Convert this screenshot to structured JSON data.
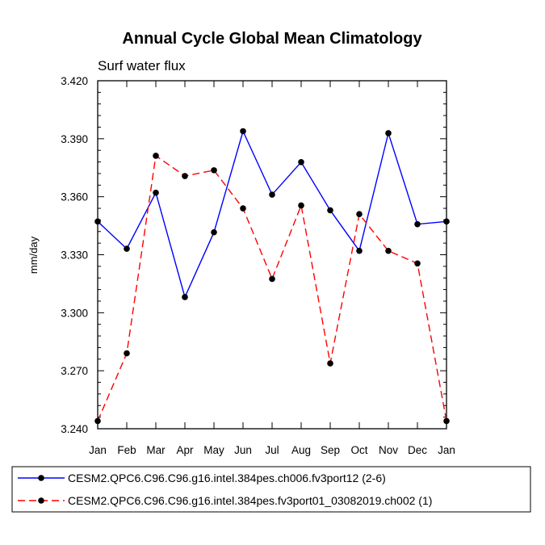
{
  "chart_data": {
    "type": "line",
    "title": "Annual Cycle Global Mean Climatology",
    "subtitle": "Surf water flux",
    "xlabel": "",
    "ylabel": "mm/day",
    "categories": [
      "Jan",
      "Feb",
      "Mar",
      "Apr",
      "May",
      "Jun",
      "Jul",
      "Aug",
      "Sep",
      "Oct",
      "Nov",
      "Dec",
      "Jan"
    ],
    "ylim": [
      3.24,
      3.42
    ],
    "yticks": [
      "3.240",
      "3.270",
      "3.300",
      "3.330",
      "3.360",
      "3.390",
      "3.420"
    ],
    "series": [
      {
        "name": "CESM2.QPC6.C96.C96.g16.intel.384pes.ch006.fv3port12 (2-6)",
        "color": "#0000ff",
        "dash": "solid",
        "values": [
          3.3472,
          3.3331,
          3.3621,
          3.3081,
          3.3416,
          3.3939,
          3.3611,
          3.3779,
          3.353,
          3.332,
          3.3929,
          3.3458,
          3.3472
        ]
      },
      {
        "name": "CESM2.QPC6.C96.C96.g16.intel.384pes.fv3port01_03082019.ch002 (1)",
        "color": "#ff0000",
        "dash": "dashed",
        "values": [
          3.244,
          3.279,
          3.3812,
          3.3707,
          3.3737,
          3.354,
          3.3175,
          3.3555,
          3.2738,
          3.351,
          3.332,
          3.3255,
          3.244
        ]
      }
    ]
  }
}
